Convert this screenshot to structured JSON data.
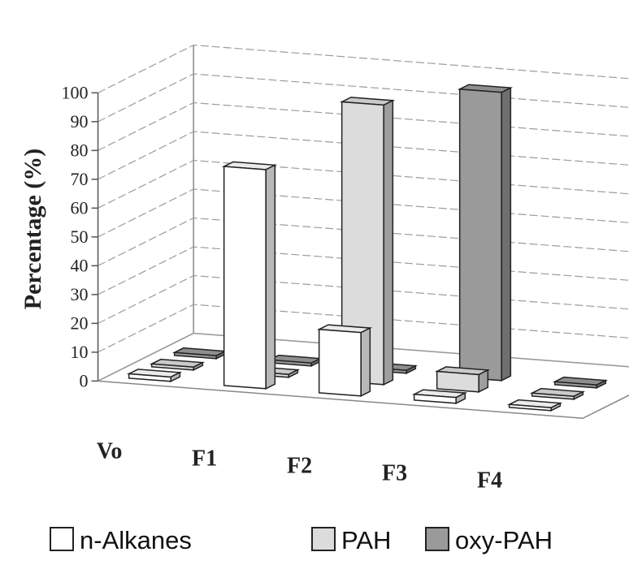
{
  "chart_data": {
    "type": "bar",
    "style": "3d-clustered",
    "ylabel": "Percentage (%)",
    "ylim": [
      0,
      100
    ],
    "yticks": [
      "0",
      "10",
      "20",
      "30",
      "40",
      "50",
      "60",
      "70",
      "80",
      "90",
      "100"
    ],
    "categories": [
      "Vo",
      "F1",
      "F2",
      "F3",
      "F4"
    ],
    "series": [
      {
        "name": "n-Alkanes",
        "color": "#ffffff",
        "values": [
          1.5,
          76,
          22,
          2,
          1
        ]
      },
      {
        "name": "PAH",
        "color": "#dcdcdc",
        "values": [
          1,
          1,
          97,
          6,
          1
        ]
      },
      {
        "name": "oxy-PAH",
        "color": "#9a9a9a",
        "values": [
          1,
          1,
          1,
          100,
          1
        ]
      }
    ],
    "legend_position": "bottom",
    "grid": true
  }
}
